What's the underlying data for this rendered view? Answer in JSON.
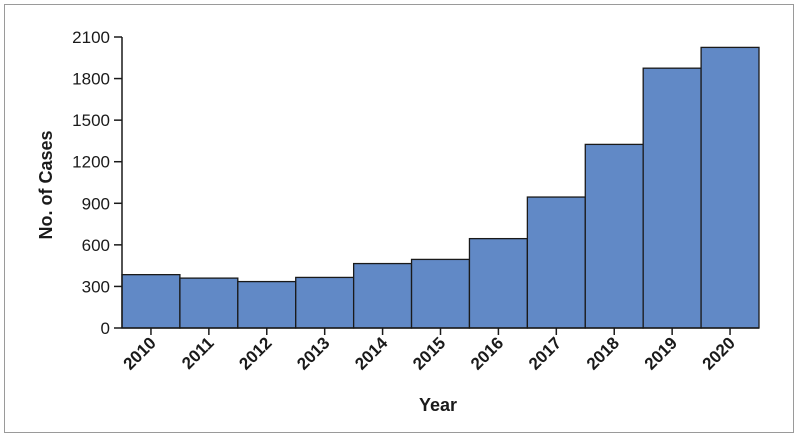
{
  "chart_data": {
    "type": "bar",
    "categories": [
      "2010",
      "2011",
      "2012",
      "2013",
      "2014",
      "2015",
      "2016",
      "2017",
      "2018",
      "2019",
      "2020"
    ],
    "values": [
      385,
      360,
      335,
      365,
      465,
      495,
      645,
      945,
      1325,
      1875,
      2025
    ],
    "xlabel": "Year",
    "ylabel": "No. of Cases",
    "ylim": [
      0,
      2100
    ],
    "yticks": [
      0,
      300,
      600,
      900,
      1200,
      1500,
      1800,
      2100
    ],
    "grid": false,
    "bar_color": "#6189c6",
    "bar_edge_color": "#1a1a1a"
  }
}
